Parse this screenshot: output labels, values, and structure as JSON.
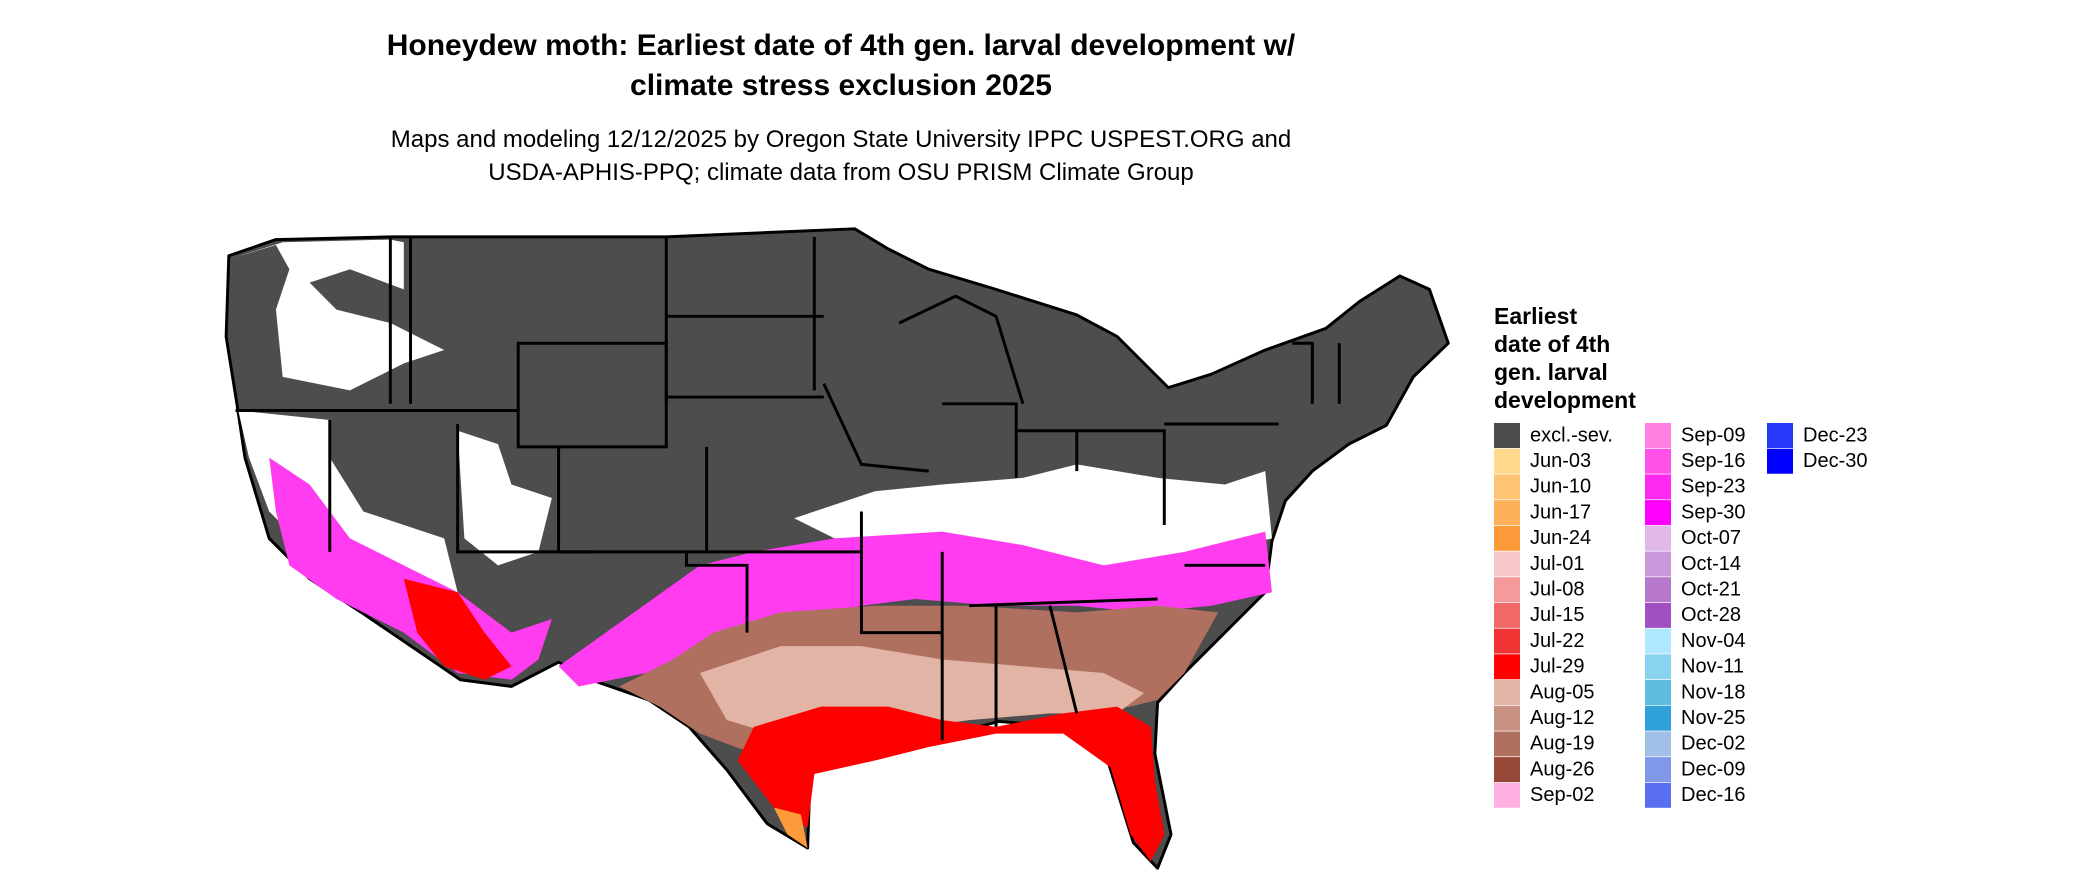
{
  "header": {
    "title_lines": [
      "Honeydew moth: Earliest date of 4th gen. larval development w/",
      "climate stress exclusion 2025"
    ],
    "subtitle_lines": [
      "Maps and modeling 12/12/2025 by Oregon State University IPPC USPEST.ORG and",
      "USDA-APHIS-PPQ; climate data from OSU PRISM Climate Group"
    ]
  },
  "legend": {
    "title_lines": [
      "Earliest",
      "date of 4th",
      "gen. larval",
      "development"
    ],
    "items": [
      {
        "label": "excl.-sev.",
        "color": "#4d4d4d"
      },
      {
        "label": "Jun-03",
        "color": "#fed98e"
      },
      {
        "label": "Jun-10",
        "color": "#fdc474"
      },
      {
        "label": "Jun-17",
        "color": "#fdb05a"
      },
      {
        "label": "Jun-24",
        "color": "#fd9a3a"
      },
      {
        "label": "Jul-01",
        "color": "#f8c8c8"
      },
      {
        "label": "Jul-08",
        "color": "#f49a9a"
      },
      {
        "label": "Jul-15",
        "color": "#f06868"
      },
      {
        "label": "Jul-22",
        "color": "#f03434"
      },
      {
        "label": "Jul-29",
        "color": "#ff0000"
      },
      {
        "label": "Aug-05",
        "color": "#e2b4a6"
      },
      {
        "label": "Aug-12",
        "color": "#c89282"
      },
      {
        "label": "Aug-19",
        "color": "#b07060"
      },
      {
        "label": "Aug-26",
        "color": "#984838"
      },
      {
        "label": "Sep-02",
        "color": "#ffb0e0"
      },
      {
        "label": "Sep-09",
        "color": "#ff80e0"
      },
      {
        "label": "Sep-16",
        "color": "#ff50e8"
      },
      {
        "label": "Sep-23",
        "color": "#ff28f0"
      },
      {
        "label": "Sep-30",
        "color": "#ff00ff"
      },
      {
        "label": "Oct-07",
        "color": "#e0b8e8"
      },
      {
        "label": "Oct-14",
        "color": "#cc98dc"
      },
      {
        "label": "Oct-21",
        "color": "#b878cc"
      },
      {
        "label": "Oct-28",
        "color": "#a050c0"
      },
      {
        "label": "Nov-04",
        "color": "#b0e8ff"
      },
      {
        "label": "Nov-11",
        "color": "#88d4f0"
      },
      {
        "label": "Nov-18",
        "color": "#60bce0"
      },
      {
        "label": "Nov-25",
        "color": "#30a0d8"
      },
      {
        "label": "Dec-02",
        "color": "#a0c0e8"
      },
      {
        "label": "Dec-09",
        "color": "#8098e8"
      },
      {
        "label": "Dec-16",
        "color": "#5870f0"
      },
      {
        "label": "Dec-23",
        "color": "#2838f8"
      },
      {
        "label": "Dec-30",
        "color": "#0000ff"
      }
    ]
  }
}
